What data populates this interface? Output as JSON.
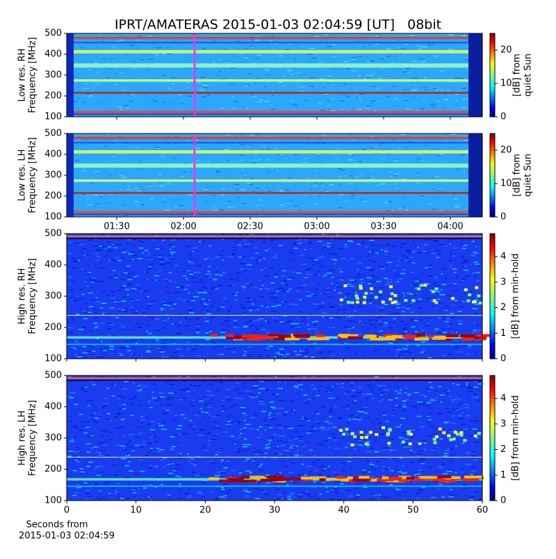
{
  "title": "IPRT/AMATERAS 2015-01-03 02:04:59 [UT]   08bit",
  "x_label": [
    "Seconds from",
    "2015-01-03 02:04:59"
  ],
  "chart_data": [
    {
      "type": "heatmap",
      "colormap": "jet",
      "y_label": [
        "Low res. RH",
        "Frequency [MHz]"
      ],
      "ylim": [
        100,
        500
      ],
      "yticks": [
        100,
        200,
        300,
        400,
        500
      ],
      "xlim": [
        67.5,
        254.4
      ],
      "xticks": [
        90,
        120,
        150,
        180,
        210,
        240
      ],
      "marker_x": 125,
      "clim": [
        0,
        25
      ],
      "cticks": [
        0,
        10,
        20
      ],
      "colorbar_label": [
        "[dB] from",
        "quiet Sun"
      ]
    },
    {
      "type": "heatmap",
      "colormap": "jet",
      "y_label": [
        "Low res. LH",
        "Frequency [MHz]"
      ],
      "ylim": [
        100,
        500
      ],
      "yticks": [
        100,
        200,
        300,
        400,
        500
      ],
      "xlim": [
        67.5,
        254.4
      ],
      "xticks": [
        {
          "value": 90,
          "label": "01:30"
        },
        {
          "value": 120,
          "label": "02:00"
        },
        {
          "value": 150,
          "label": "02:30"
        },
        {
          "value": 180,
          "label": "03:00"
        },
        {
          "value": 210,
          "label": "03:30"
        },
        {
          "value": 240,
          "label": "04:00"
        }
      ],
      "marker_x": 125,
      "clim": [
        0,
        25
      ],
      "cticks": [
        0,
        10,
        20
      ],
      "colorbar_label": [
        "[dB] from",
        "quiet Sun"
      ]
    },
    {
      "type": "heatmap",
      "colormap": "jet",
      "y_label": [
        "High res. RH",
        "Frequency [MHz]"
      ],
      "ylim": [
        100,
        500
      ],
      "yticks": [
        100,
        200,
        300,
        400,
        500
      ],
      "xlim": [
        0,
        60
      ],
      "xticks": [
        0,
        10,
        20,
        30,
        40,
        50,
        60
      ],
      "clim": [
        0,
        4.9
      ],
      "cticks": [
        0,
        1,
        2,
        3,
        4
      ],
      "colorbar_label": [
        "[dB] from min-hold"
      ]
    },
    {
      "type": "heatmap",
      "colormap": "jet",
      "y_label": [
        "High res. LH",
        "Frequency [MHz]"
      ],
      "ylim": [
        100,
        500
      ],
      "yticks": [
        100,
        200,
        300,
        400,
        500
      ],
      "xlim": [
        0,
        60
      ],
      "xticks": [
        0,
        10,
        20,
        30,
        40,
        50,
        60
      ],
      "clim": [
        0,
        4.9
      ],
      "cticks": [
        0,
        1,
        2,
        3,
        4
      ],
      "colorbar_label": [
        "[dB] from min-hold"
      ]
    }
  ]
}
